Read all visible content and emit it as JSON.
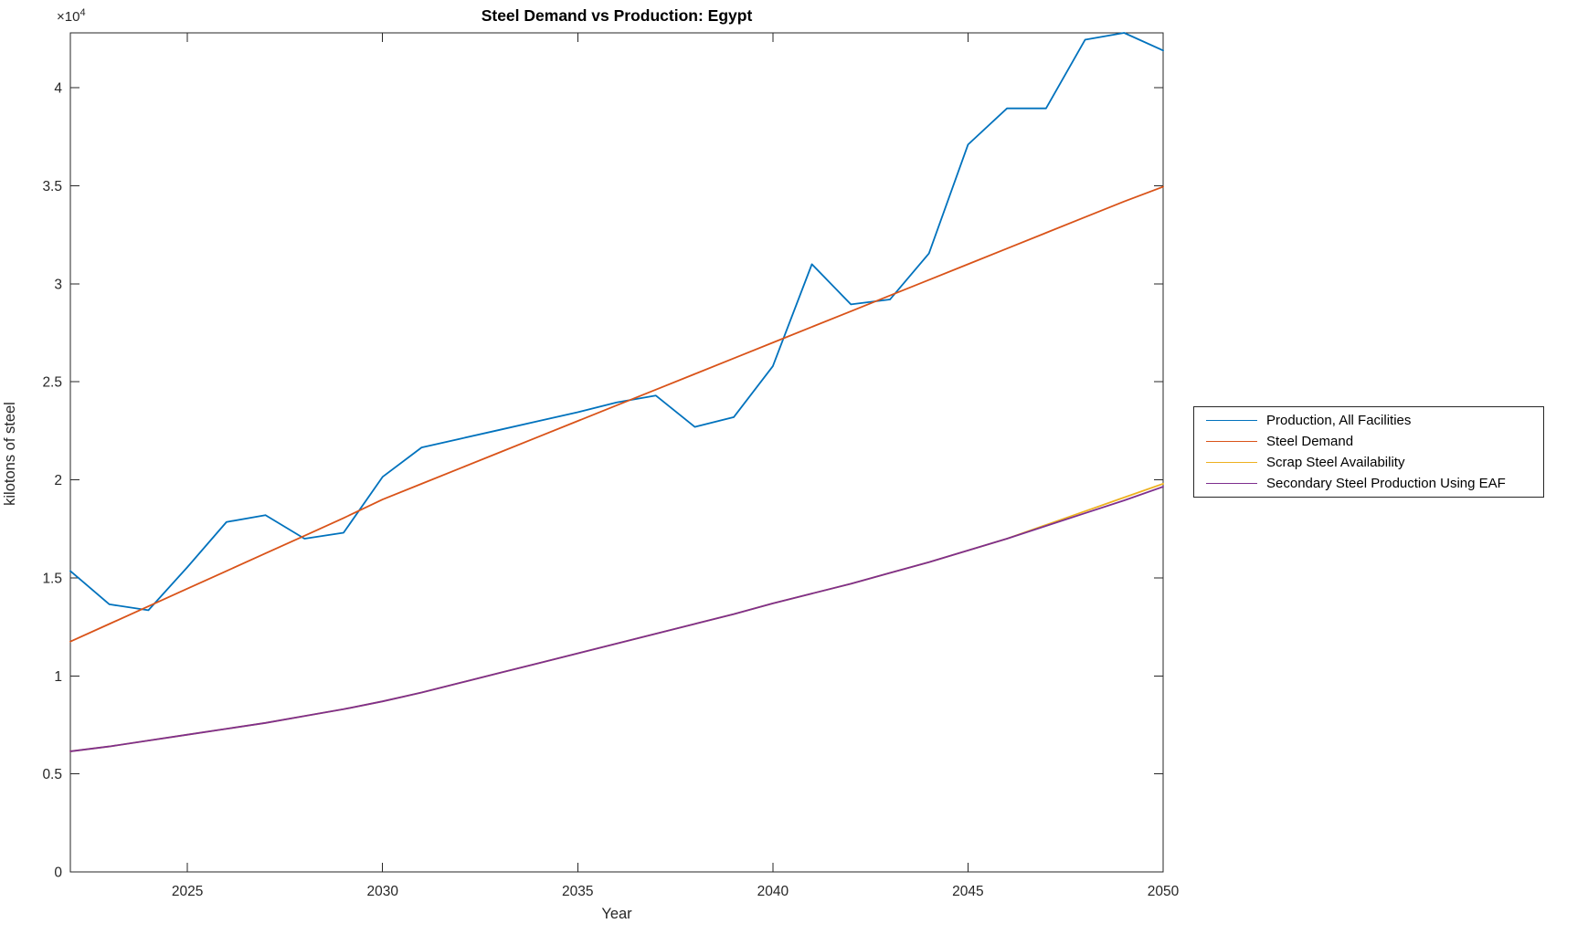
{
  "chart_data": {
    "type": "line",
    "title": "Steel Demand vs Production: Egypt",
    "xlabel": "Year",
    "ylabel": "kilotons of steel",
    "y_axis_exponent": {
      "base": "×10",
      "power": "4"
    },
    "xlim": [
      2022,
      2050
    ],
    "ylim": [
      0,
      42800
    ],
    "x_ticks": [
      2025,
      2030,
      2035,
      2040,
      2045,
      2050
    ],
    "x_tick_labels": [
      "2025",
      "2030",
      "2035",
      "2040",
      "2045",
      "2050"
    ],
    "y_ticks": [
      0,
      5000,
      10000,
      15000,
      20000,
      25000,
      30000,
      35000,
      40000
    ],
    "y_tick_labels": [
      "0",
      "0.5",
      "1",
      "1.5",
      "2",
      "2.5",
      "3",
      "3.5",
      "4"
    ],
    "grid": false,
    "legend_position": "right-outside",
    "axis_color": "#262626",
    "x": [
      2022,
      2023,
      2024,
      2025,
      2026,
      2027,
      2028,
      2029,
      2030,
      2031,
      2032,
      2033,
      2034,
      2035,
      2036,
      2037,
      2038,
      2039,
      2040,
      2041,
      2042,
      2043,
      2044,
      2045,
      2046,
      2047,
      2048,
      2049,
      2050
    ],
    "series": [
      {
        "name": "Production, All Facilities",
        "color": "#0072BD",
        "values": [
          15350,
          13650,
          13350,
          15550,
          17850,
          18200,
          17000,
          17300,
          20150,
          21650,
          22100,
          22550,
          23000,
          23450,
          23950,
          24300,
          22700,
          23200,
          25800,
          31000,
          28950,
          29200,
          31550,
          37100,
          38950,
          38950,
          42450,
          42800,
          41900
        ]
      },
      {
        "name": "Steel Demand",
        "color": "#D95319",
        "values": [
          11750,
          12650,
          13550,
          14450,
          15350,
          16250,
          17150,
          18050,
          19000,
          19800,
          20600,
          21400,
          22200,
          23000,
          23800,
          24600,
          25400,
          26200,
          27000,
          27800,
          28600,
          29400,
          30200,
          31000,
          31800,
          32600,
          33400,
          34200,
          34950
        ]
      },
      {
        "name": "Scrap Steel Availability",
        "color": "#EDB120",
        "values": [
          6150,
          6400,
          6700,
          7000,
          7300,
          7600,
          7950,
          8300,
          8700,
          9150,
          9650,
          10150,
          10650,
          11150,
          11650,
          12150,
          12650,
          13150,
          13700,
          14200,
          14700,
          15250,
          15800,
          16400,
          17000,
          17700,
          18400,
          19100,
          19800
        ]
      },
      {
        "name": "Secondary Steel Production Using EAF",
        "color": "#7E2F8E",
        "values": [
          6150,
          6400,
          6700,
          7000,
          7300,
          7600,
          7950,
          8300,
          8700,
          9150,
          9650,
          10150,
          10650,
          11150,
          11650,
          12150,
          12650,
          13150,
          13700,
          14200,
          14700,
          15250,
          15800,
          16400,
          17000,
          17650,
          18300,
          18950,
          19650
        ]
      }
    ]
  }
}
